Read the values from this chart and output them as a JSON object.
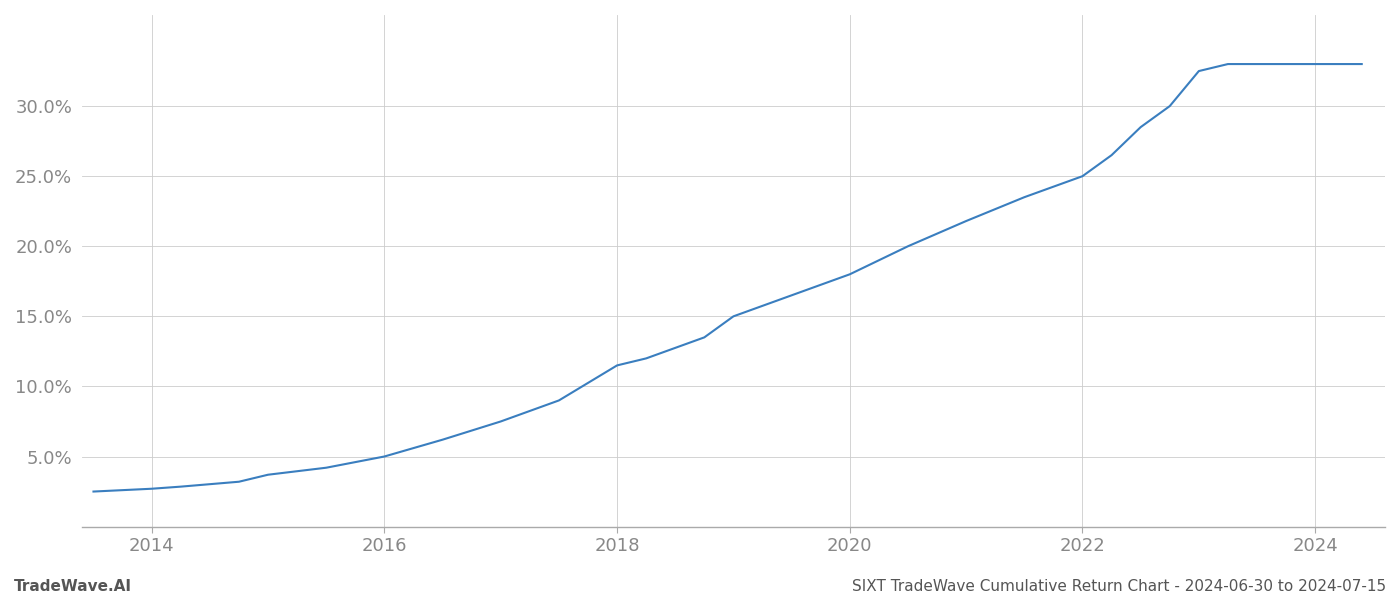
{
  "x_years": [
    2013.5,
    2014.0,
    2014.25,
    2014.75,
    2015.0,
    2015.5,
    2016.0,
    2016.5,
    2017.0,
    2017.5,
    2018.0,
    2018.25,
    2018.75,
    2019.0,
    2019.5,
    2020.0,
    2020.25,
    2020.5,
    2021.0,
    2021.5,
    2022.0,
    2022.25,
    2022.5,
    2022.75,
    2023.0,
    2023.25,
    2023.5,
    2024.0,
    2024.4
  ],
  "y_values": [
    2.5,
    2.7,
    2.85,
    3.2,
    3.7,
    4.2,
    5.0,
    6.2,
    7.5,
    9.0,
    11.5,
    12.0,
    13.5,
    15.0,
    16.5,
    18.0,
    19.0,
    20.0,
    21.8,
    23.5,
    25.0,
    26.5,
    28.5,
    30.0,
    32.5,
    33.0,
    33.0,
    33.0,
    33.0
  ],
  "line_color": "#3a7ebf",
  "line_width": 1.5,
  "xlim": [
    2013.4,
    2024.6
  ],
  "ylim": [
    0.0,
    36.5
  ],
  "xticks": [
    2014,
    2016,
    2018,
    2020,
    2022,
    2024
  ],
  "yticks": [
    5.0,
    10.0,
    15.0,
    20.0,
    25.0,
    30.0
  ],
  "ytick_labels": [
    "5.0%",
    "10.0%",
    "15.0%",
    "20.0%",
    "25.0%",
    "30.0%"
  ],
  "grid_color": "#cccccc",
  "grid_linewidth": 0.6,
  "tick_color": "#888888",
  "tick_fontsize": 13,
  "background_color": "#ffffff",
  "footer_left": "TradeWave.AI",
  "footer_right": "SIXT TradeWave Cumulative Return Chart - 2024-06-30 to 2024-07-15",
  "footer_fontsize": 11,
  "footer_color": "#555555"
}
